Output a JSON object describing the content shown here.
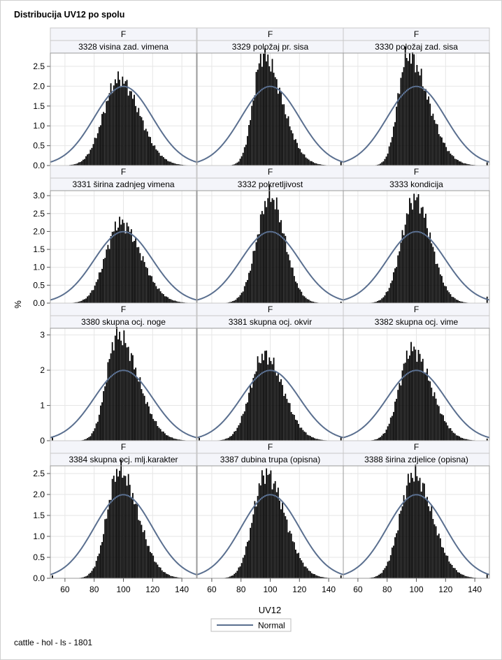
{
  "title": "Distribucija UV12 po spolu",
  "footnote": "cattle - hol - ls - 1801",
  "chart_data": {
    "type": "histogram-panel",
    "group_label": "F",
    "xlabel": "UV12",
    "ylabel": "%",
    "x_ticks": [
      60,
      80,
      100,
      120,
      140
    ],
    "xlim": [
      50,
      150
    ],
    "legend": {
      "label": "Normal",
      "placement": "bottom-center",
      "color": "#5a6f8f"
    },
    "colors": {
      "bars": "#000000",
      "normal_curve": "#5a6f8f",
      "grid": "#e6e6e6",
      "header_bg": "#f4f5fa"
    },
    "normal": {
      "mean": 100,
      "sd": 20
    },
    "rows": [
      {
        "ylim": [
          0,
          2.8
        ],
        "y_ticks": [
          "0.0",
          "0.5",
          "1.0",
          "1.5",
          "2.0",
          "2.5"
        ]
      },
      {
        "ylim": [
          0,
          3.1
        ],
        "y_ticks": [
          "0.0",
          "0.5",
          "1.0",
          "1.5",
          "2.0",
          "2.5",
          "3.0"
        ]
      },
      {
        "ylim": [
          0,
          3.15
        ],
        "y_ticks": [
          "0",
          "1",
          "2",
          "3"
        ]
      },
      {
        "ylim": [
          0,
          2.65
        ],
        "y_ticks": [
          "0.0",
          "0.5",
          "1.0",
          "1.5",
          "2.0",
          "2.5"
        ]
      }
    ],
    "panels": [
      {
        "label": "3328 visina zad. vimena",
        "peak_x": 97,
        "peak_y": 2.18,
        "sd_left": 10.5,
        "sd_right": 14,
        "spike_left": 0.0,
        "spike_right": 0.0
      },
      {
        "label": "3329 položaj pr. sisa",
        "peak_x": 95,
        "peak_y": 2.78,
        "sd_left": 6.5,
        "sd_right": 13,
        "spike_left": 0.0,
        "spike_right": 0.1
      },
      {
        "label": "3330 položaj zad. sisa",
        "peak_x": 94,
        "peak_y": 2.78,
        "sd_left": 6.5,
        "sd_right": 14,
        "spike_left": 0.0,
        "spike_right": 0.08
      },
      {
        "label": "3331 širina zadnjeg vimena",
        "peak_x": 98,
        "peak_y": 2.25,
        "sd_left": 10,
        "sd_right": 14,
        "spike_left": 0.0,
        "spike_right": 0.0
      },
      {
        "label": "3332 pokretljivost",
        "peak_x": 100,
        "peak_y": 2.98,
        "sd_left": 9,
        "sd_right": 10,
        "spike_left": 0.0,
        "spike_right": 0.04
      },
      {
        "label": "3333 kondicija",
        "peak_x": 99,
        "peak_y": 2.92,
        "sd_left": 9,
        "sd_right": 11,
        "spike_left": 0.0,
        "spike_right": 0.18
      },
      {
        "label": "3380 skupna ocj. noge",
        "peak_x": 96,
        "peak_y": 3.0,
        "sd_left": 7.5,
        "sd_right": 14,
        "spike_left": 0.12,
        "spike_right": 0.0
      },
      {
        "label": "3381 skupna ocj. okvir",
        "peak_x": 96,
        "peak_y": 2.42,
        "sd_left": 9.5,
        "sd_right": 13,
        "spike_left": 0.08,
        "spike_right": 0.1
      },
      {
        "label": "3382 skupna ocj. vime",
        "peak_x": 97,
        "peak_y": 2.6,
        "sd_left": 8.5,
        "sd_right": 13,
        "spike_left": 0.0,
        "spike_right": 0.06
      },
      {
        "label": "3384 skupna ocj. mlj.karakter",
        "peak_x": 97,
        "peak_y": 2.58,
        "sd_left": 8,
        "sd_right": 13,
        "spike_left": 0.07,
        "spike_right": 0.0
      },
      {
        "label": "3387 dubina trupa (opisna)",
        "peak_x": 97,
        "peak_y": 2.5,
        "sd_left": 8.5,
        "sd_right": 13,
        "spike_left": 0.0,
        "spike_right": 0.07
      },
      {
        "label": "3388 širina zdjelice (opisna)",
        "peak_x": 98,
        "peak_y": 2.48,
        "sd_left": 9,
        "sd_right": 13,
        "spike_left": 0.0,
        "spike_right": 0.1
      }
    ]
  }
}
